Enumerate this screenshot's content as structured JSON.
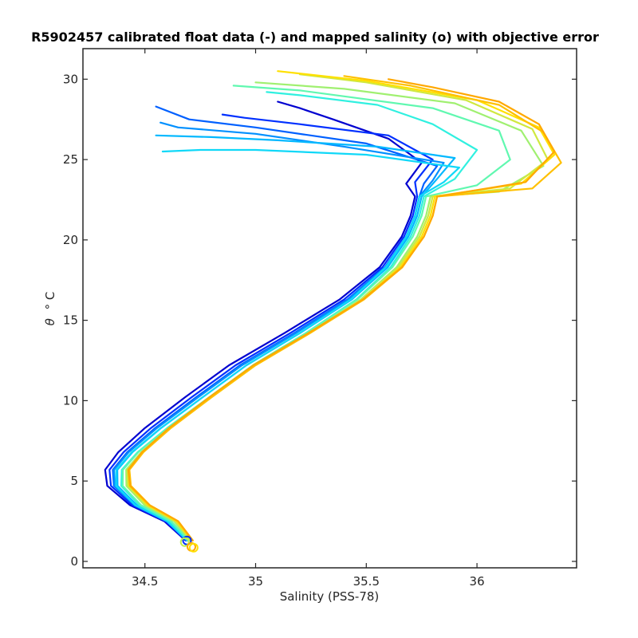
{
  "chart_data": {
    "type": "line",
    "title": "R5902457 calibrated float data (-) and mapped salinity (o) with objective error",
    "xlabel": "Salinity (PSS-78)",
    "ylabel_symbol": "θ",
    "ylabel_unit": "° C",
    "xlim": [
      34.22,
      36.45
    ],
    "ylim": [
      -0.4,
      31.9
    ],
    "x_ticks": [
      34.5,
      35,
      35.5,
      36
    ],
    "x_tick_labels": [
      "34.5",
      "35",
      "35.5",
      "36"
    ],
    "y_ticks": [
      0,
      5,
      10,
      15,
      20,
      25,
      30
    ],
    "y_tick_labels": [
      "0",
      "5",
      "10",
      "15",
      "20",
      "25",
      "30"
    ],
    "grid": false,
    "colormap": [
      "#0000d0",
      "#0050ff",
      "#00a0ff",
      "#20e0f0",
      "#70f8a0",
      "#c0f050",
      "#ffd800",
      "#ffa000"
    ],
    "base_profile": {
      "salinity": [
        34.69,
        34.6,
        34.45,
        34.35,
        34.34,
        34.4,
        34.52,
        34.7,
        34.9,
        35.15,
        35.4,
        35.58,
        35.68,
        35.72,
        35.74
      ],
      "theta": [
        1.3,
        2.5,
        3.5,
        4.7,
        5.7,
        6.8,
        8.3,
        10.2,
        12.2,
        14.2,
        16.3,
        18.3,
        20.2,
        21.5,
        22.7
      ]
    },
    "series": [
      {
        "color": "#0000d0",
        "xshift": -0.02,
        "bend": 0.0,
        "surface_salinity": [
          35.68,
          35.75,
          35.6,
          35.35,
          35.2,
          35.1
        ],
        "surface_theta": [
          23.5,
          24.8,
          26.3,
          27.5,
          28.2,
          28.6
        ]
      },
      {
        "color": "#0030ff",
        "xshift": -0.01,
        "bend": 0.02,
        "surface_salinity": [
          35.72,
          35.8,
          35.6,
          35.2,
          34.95,
          34.85
        ],
        "surface_theta": [
          23.6,
          25.0,
          26.5,
          27.2,
          27.6,
          27.8
        ]
      },
      {
        "color": "#0060ff",
        "xshift": 0.0,
        "bend": 0.03,
        "surface_salinity": [
          35.76,
          35.82,
          35.5,
          35.0,
          34.7,
          34.55
        ],
        "surface_theta": [
          23.5,
          24.6,
          26.0,
          27.0,
          27.5,
          28.3
        ]
      },
      {
        "color": "#0090ff",
        "xshift": 0.0,
        "bend": 0.04,
        "surface_salinity": [
          35.8,
          35.85,
          35.4,
          35.0,
          34.65,
          34.57
        ],
        "surface_theta": [
          23.7,
          24.8,
          25.8,
          26.6,
          27.0,
          27.3
        ]
      },
      {
        "color": "#00b8ff",
        "xshift": 0.01,
        "bend": 0.05,
        "surface_salinity": [
          35.82,
          35.9,
          35.55,
          35.1,
          34.8,
          34.55
        ],
        "surface_theta": [
          23.8,
          25.1,
          25.8,
          26.2,
          26.4,
          26.5
        ]
      },
      {
        "color": "#10d8f8",
        "xshift": 0.0,
        "bend": 0.06,
        "surface_salinity": [
          35.85,
          35.92,
          35.5,
          35.0,
          34.75,
          34.58
        ],
        "surface_theta": [
          23.6,
          24.5,
          25.3,
          25.6,
          25.6,
          25.5
        ]
      },
      {
        "color": "#30f0e0",
        "xshift": 0.02,
        "bend": 0.07,
        "surface_salinity": [
          35.9,
          36.0,
          35.8,
          35.55,
          35.2,
          35.05
        ],
        "surface_theta": [
          23.8,
          25.6,
          27.2,
          28.4,
          29.0,
          29.2
        ]
      },
      {
        "color": "#60f8b0",
        "xshift": 0.03,
        "bend": 0.06,
        "surface_salinity": [
          36.0,
          36.15,
          36.1,
          35.8,
          35.2,
          34.9
        ],
        "surface_theta": [
          23.4,
          25.0,
          26.8,
          28.2,
          29.3,
          29.6
        ]
      },
      {
        "color": "#a0f070",
        "xshift": 0.05,
        "bend": 0.05,
        "surface_salinity": [
          36.1,
          36.3,
          36.2,
          35.9,
          35.4,
          35.0
        ],
        "surface_theta": [
          23.0,
          24.6,
          26.8,
          28.5,
          29.4,
          29.8
        ]
      },
      {
        "color": "#d0e840",
        "xshift": 0.06,
        "bend": 0.04,
        "surface_salinity": [
          36.15,
          36.32,
          36.25,
          35.95,
          35.5,
          35.2
        ],
        "surface_theta": [
          23.2,
          25.0,
          26.9,
          28.7,
          29.8,
          30.3
        ]
      },
      {
        "color": "#ffe000",
        "xshift": 0.07,
        "bend": 0.03,
        "surface_salinity": [
          36.2,
          36.35,
          36.28,
          36.0,
          35.5,
          35.1
        ],
        "surface_theta": [
          23.5,
          25.3,
          27.0,
          28.7,
          29.9,
          30.5
        ]
      },
      {
        "color": "#ffc000",
        "xshift": 0.08,
        "bend": 0.02,
        "surface_salinity": [
          36.25,
          36.38,
          36.3,
          36.1,
          35.7,
          35.4
        ],
        "surface_theta": [
          23.2,
          24.8,
          26.7,
          28.4,
          29.6,
          30.2
        ]
      },
      {
        "color": "#ffa800",
        "xshift": 0.08,
        "bend": 0.01,
        "surface_salinity": [
          36.22,
          36.35,
          36.28,
          36.1,
          35.8,
          35.6
        ],
        "surface_theta": [
          23.6,
          25.5,
          27.2,
          28.6,
          29.5,
          30.0
        ]
      }
    ],
    "mapped_points": [
      {
        "salinity": 34.69,
        "theta": 1.3,
        "color": "#0030ff"
      },
      {
        "salinity": 34.68,
        "theta": 1.2,
        "color": "#c0f050"
      },
      {
        "salinity": 34.71,
        "theta": 0.9,
        "color": "#ffa800"
      },
      {
        "salinity": 34.72,
        "theta": 0.85,
        "color": "#ffe000"
      }
    ]
  }
}
